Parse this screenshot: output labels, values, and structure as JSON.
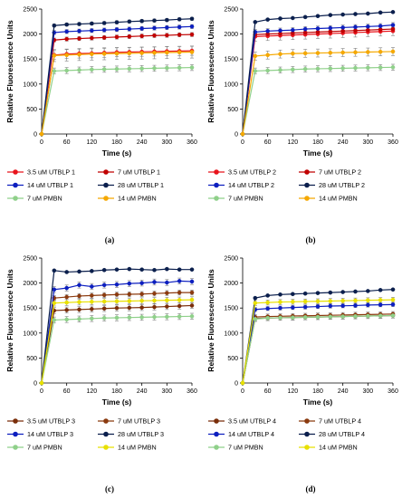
{
  "chart_data": [
    {
      "type": "line",
      "panel_label": "(a)",
      "xlabel": "Time (s)",
      "ylabel": "Relative Fluorescence Units",
      "xlim": [
        0,
        360
      ],
      "ylim": [
        0,
        2500
      ],
      "xticks": [
        "0",
        "60",
        "120",
        "180",
        "240",
        "300",
        "360"
      ],
      "yticks": [
        "0",
        "500",
        "1000",
        "1500",
        "2000",
        "2500"
      ],
      "x": [
        0,
        30,
        60,
        90,
        120,
        150,
        180,
        210,
        240,
        270,
        300,
        330,
        360
      ],
      "series": [
        {
          "name": "3.5 uM UTBLP 1",
          "color": "#e8141c",
          "values": [
            0,
            1580,
            1600,
            1610,
            1615,
            1625,
            1635,
            1640,
            1645,
            1650,
            1655,
            1660,
            1665
          ],
          "err": 90
        },
        {
          "name": "7 uM UTBLP 1",
          "color": "#c00000",
          "values": [
            0,
            1880,
            1900,
            1910,
            1920,
            1930,
            1940,
            1950,
            1960,
            1970,
            1975,
            1985,
            1990
          ],
          "err": 40
        },
        {
          "name": "14 uM UTBLP 1",
          "color": "#0d1fbf",
          "values": [
            0,
            2030,
            2050,
            2060,
            2070,
            2080,
            2090,
            2100,
            2110,
            2120,
            2130,
            2140,
            2150
          ],
          "err": 40
        },
        {
          "name": "28 uM UTBLP 1",
          "color": "#0b1f4d",
          "values": [
            0,
            2170,
            2190,
            2200,
            2210,
            2220,
            2235,
            2250,
            2260,
            2270,
            2280,
            2295,
            2305
          ],
          "err": 30
        },
        {
          "name": "7 uM PMBN",
          "color": "#8fd08a",
          "values": [
            0,
            1260,
            1270,
            1280,
            1290,
            1295,
            1300,
            1305,
            1310,
            1315,
            1320,
            1325,
            1330
          ],
          "err": 60
        },
        {
          "name": "14 uM PMBN",
          "color": "#f5a800",
          "values": [
            0,
            1570,
            1580,
            1590,
            1600,
            1605,
            1610,
            1615,
            1620,
            1625,
            1630,
            1635,
            1640
          ],
          "err": 120
        }
      ]
    },
    {
      "type": "line",
      "panel_label": "(b)",
      "xlabel": "Time (s)",
      "ylabel": "Relative Fluorescence Units",
      "xlim": [
        0,
        360
      ],
      "ylim": [
        0,
        2500
      ],
      "xticks": [
        "0",
        "60",
        "120",
        "180",
        "240",
        "300",
        "360"
      ],
      "yticks": [
        "0",
        "500",
        "1000",
        "1500",
        "2000",
        "2500"
      ],
      "x": [
        0,
        30,
        60,
        90,
        120,
        150,
        180,
        210,
        240,
        270,
        300,
        330,
        360
      ],
      "series": [
        {
          "name": "3.5 uM UTBLP 2",
          "color": "#e8141c",
          "values": [
            0,
            1950,
            1960,
            1970,
            1980,
            1990,
            2000,
            2010,
            2020,
            2030,
            2040,
            2050,
            2060
          ],
          "err": 90
        },
        {
          "name": "7 uM UTBLP 2",
          "color": "#c00000",
          "values": [
            0,
            1990,
            2000,
            2010,
            2020,
            2030,
            2040,
            2050,
            2060,
            2070,
            2080,
            2090,
            2100
          ],
          "err": 60
        },
        {
          "name": "14 uM UTBLP 2",
          "color": "#0d1fbf",
          "values": [
            0,
            2040,
            2060,
            2070,
            2080,
            2100,
            2110,
            2120,
            2130,
            2140,
            2150,
            2160,
            2180
          ],
          "err": 50
        },
        {
          "name": "28 uM UTBLP 2",
          "color": "#0b1f4d",
          "values": [
            0,
            2240,
            2290,
            2310,
            2320,
            2340,
            2360,
            2380,
            2390,
            2400,
            2410,
            2430,
            2440
          ],
          "err": 20
        },
        {
          "name": "7 uM PMBN",
          "color": "#8fd08a",
          "values": [
            0,
            1260,
            1270,
            1280,
            1290,
            1300,
            1305,
            1310,
            1315,
            1320,
            1325,
            1330,
            1335
          ],
          "err": 60
        },
        {
          "name": "14 uM PMBN",
          "color": "#f5a800",
          "values": [
            0,
            1560,
            1580,
            1600,
            1610,
            1615,
            1620,
            1625,
            1630,
            1635,
            1640,
            1645,
            1650
          ],
          "err": 80
        }
      ]
    },
    {
      "type": "line",
      "panel_label": "(c)",
      "xlabel": "Time (s)",
      "ylabel": "Relative Fluorescence Units",
      "xlim": [
        0,
        360
      ],
      "ylim": [
        0,
        2500
      ],
      "xticks": [
        "0",
        "60",
        "120",
        "180",
        "240",
        "300",
        "360"
      ],
      "yticks": [
        "0",
        "500",
        "1000",
        "1500",
        "2000",
        "2500"
      ],
      "x": [
        0,
        30,
        60,
        90,
        120,
        150,
        180,
        210,
        240,
        270,
        300,
        330,
        360
      ],
      "series": [
        {
          "name": "3.5 uM UTBLP 3",
          "color": "#7a2e0a",
          "values": [
            0,
            1450,
            1460,
            1470,
            1480,
            1490,
            1500,
            1505,
            1510,
            1520,
            1530,
            1540,
            1550
          ],
          "err": 60
        },
        {
          "name": "7 uM UTBLP 3",
          "color": "#8b3a0f",
          "values": [
            0,
            1700,
            1720,
            1740,
            1750,
            1760,
            1770,
            1775,
            1780,
            1790,
            1800,
            1810,
            1810
          ],
          "err": 50
        },
        {
          "name": "14 uM UTBLP 3",
          "color": "#0d1fbf",
          "values": [
            0,
            1870,
            1900,
            1960,
            1930,
            1960,
            1970,
            1990,
            2000,
            2020,
            2010,
            2040,
            2030
          ],
          "err": 60
        },
        {
          "name": "28 uM UTBLP 3",
          "color": "#0b1f4d",
          "values": [
            0,
            2250,
            2220,
            2230,
            2240,
            2260,
            2270,
            2280,
            2270,
            2260,
            2280,
            2270,
            2270
          ],
          "err": 20
        },
        {
          "name": "7 uM PMBN",
          "color": "#8fd08a",
          "values": [
            0,
            1260,
            1270,
            1280,
            1290,
            1300,
            1305,
            1310,
            1315,
            1320,
            1325,
            1330,
            1335
          ],
          "err": 60
        },
        {
          "name": "14 uM PMBN",
          "color": "#e8e000",
          "values": [
            0,
            1600,
            1610,
            1620,
            1625,
            1630,
            1635,
            1640,
            1645,
            1650,
            1655,
            1660,
            1665
          ],
          "err": 60
        }
      ]
    },
    {
      "type": "line",
      "panel_label": "(d)",
      "xlabel": "Time (s)",
      "ylabel": "Relative Fluorescence Units",
      "xlim": [
        0,
        360
      ],
      "ylim": [
        0,
        2500
      ],
      "xticks": [
        "0",
        "60",
        "120",
        "180",
        "240",
        "300",
        "360"
      ],
      "yticks": [
        "0",
        "500",
        "1000",
        "1500",
        "2000",
        "2500"
      ],
      "x": [
        0,
        30,
        60,
        90,
        120,
        150,
        180,
        210,
        240,
        270,
        300,
        330,
        360
      ],
      "series": [
        {
          "name": "3.5 uM UTBLP 4",
          "color": "#7a2e0a",
          "values": [
            0,
            1290,
            1300,
            1305,
            1310,
            1315,
            1320,
            1325,
            1330,
            1335,
            1340,
            1345,
            1350
          ],
          "err": 50
        },
        {
          "name": "7 uM UTBLP 4",
          "color": "#8b3a0f",
          "values": [
            0,
            1320,
            1330,
            1335,
            1340,
            1345,
            1350,
            1355,
            1360,
            1365,
            1370,
            1375,
            1380
          ],
          "err": 50
        },
        {
          "name": "14 uM UTBLP 4",
          "color": "#0d1fbf",
          "values": [
            0,
            1470,
            1490,
            1500,
            1510,
            1520,
            1530,
            1540,
            1545,
            1550,
            1560,
            1565,
            1570
          ],
          "err": 40
        },
        {
          "name": "28 uM UTBLP 4",
          "color": "#0b1f4d",
          "values": [
            0,
            1700,
            1750,
            1770,
            1780,
            1790,
            1800,
            1810,
            1820,
            1830,
            1840,
            1860,
            1870
          ],
          "err": 20
        },
        {
          "name": "7 uM PMBN",
          "color": "#8fd08a",
          "values": [
            0,
            1280,
            1300,
            1305,
            1310,
            1315,
            1320,
            1325,
            1330,
            1335,
            1340,
            1345,
            1350
          ],
          "err": 50
        },
        {
          "name": "14 uM PMBN",
          "color": "#e8e000",
          "values": [
            0,
            1600,
            1610,
            1620,
            1625,
            1630,
            1635,
            1640,
            1645,
            1650,
            1655,
            1660,
            1665
          ],
          "err": 50
        }
      ]
    }
  ]
}
